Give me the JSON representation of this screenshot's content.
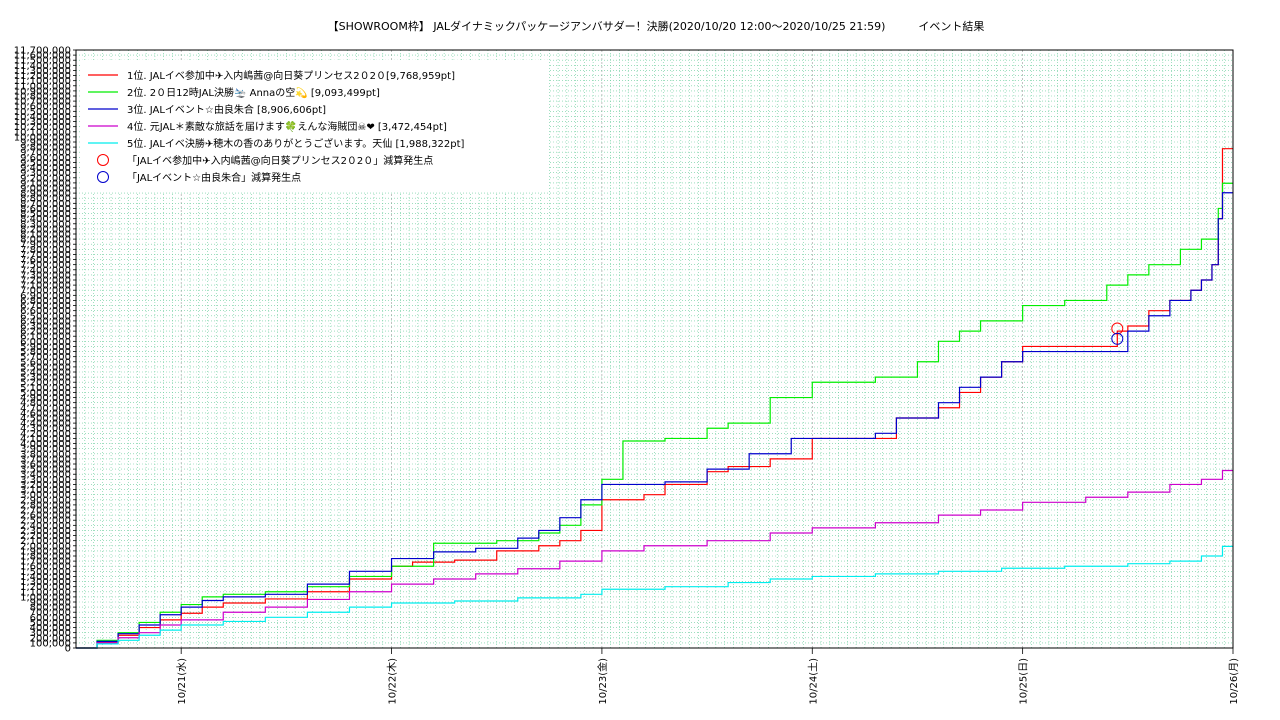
{
  "chart_data": {
    "type": "line",
    "title": "【SHOWROOM枠】 JALダイナミックパッケージアンバサダー！決勝(2020/10/20 12:00〜2020/10/25 21:59)　　　イベント結果",
    "xlabel": "",
    "ylabel": "",
    "grid": true,
    "legend_position": "top-left",
    "x_range_days": [
      -0.5,
      5.0
    ],
    "y_range": [
      0,
      11700000
    ],
    "y_ticks": [
      0,
      100000,
      200000,
      300000,
      400000,
      500000,
      600000,
      700000,
      800000,
      900000,
      1000000,
      1100000,
      1200000,
      1300000,
      1400000,
      1500000,
      1600000,
      1700000,
      1800000,
      1900000,
      2000000,
      2100000,
      2200000,
      2300000,
      2400000,
      2500000,
      2600000,
      2700000,
      2800000,
      2900000,
      3000000,
      3100000,
      3200000,
      3300000,
      3400000,
      3500000,
      3600000,
      3700000,
      3800000,
      3900000,
      4000000,
      4100000,
      4200000,
      4300000,
      4400000,
      4500000,
      4600000,
      4700000,
      4800000,
      4900000,
      5000000,
      5100000,
      5200000,
      5300000,
      5400000,
      5500000,
      5600000,
      5700000,
      5800000,
      5900000,
      6000000,
      6100000,
      6200000,
      6300000,
      6400000,
      6500000,
      6600000,
      6700000,
      6800000,
      6900000,
      7000000,
      7100000,
      7200000,
      7300000,
      7400000,
      7500000,
      7600000,
      7700000,
      7800000,
      7900000,
      8000000,
      8100000,
      8200000,
      8300000,
      8400000,
      8500000,
      8600000,
      8700000,
      8800000,
      8900000,
      9000000,
      9100000,
      9200000,
      9300000,
      9400000,
      9500000,
      9600000,
      9700000,
      9800000,
      9900000,
      10000000,
      10100000,
      10200000,
      10300000,
      10400000,
      10500000,
      10600000,
      10700000,
      10800000,
      10900000,
      11000000,
      11100000,
      11200000,
      11300000,
      11400000,
      11500000,
      11600000,
      11700000
    ],
    "x_tick_labels": [
      "10/21(水)",
      "10/22(木)",
      "10/23(金)",
      "10/24(土)",
      "10/25(日)",
      "10/26(月)"
    ],
    "series": [
      {
        "name": "1位. JALイベ参加中✈入内嶋茜@向日葵プリンセス2０2０[9,768,959pt]",
        "color": "#ff0000",
        "points": [
          [
            -0.5,
            0
          ],
          [
            -0.4,
            120000
          ],
          [
            -0.3,
            250000
          ],
          [
            -0.2,
            400000
          ],
          [
            -0.1,
            550000
          ],
          [
            0.0,
            680000
          ],
          [
            0.1,
            800000
          ],
          [
            0.2,
            880000
          ],
          [
            0.4,
            960000
          ],
          [
            0.6,
            1100000
          ],
          [
            0.8,
            1350000
          ],
          [
            1.0,
            1600000
          ],
          [
            1.1,
            1680000
          ],
          [
            1.3,
            1720000
          ],
          [
            1.5,
            1900000
          ],
          [
            1.7,
            2000000
          ],
          [
            1.8,
            2100000
          ],
          [
            1.9,
            2300000
          ],
          [
            2.0,
            2900000
          ],
          [
            2.2,
            3000000
          ],
          [
            2.3,
            3200000
          ],
          [
            2.5,
            3450000
          ],
          [
            2.6,
            3550000
          ],
          [
            2.8,
            3700000
          ],
          [
            3.0,
            4100000
          ],
          [
            3.3,
            4100000
          ],
          [
            3.4,
            4500000
          ],
          [
            3.6,
            4700000
          ],
          [
            3.7,
            5000000
          ],
          [
            3.8,
            5300000
          ],
          [
            3.9,
            5600000
          ],
          [
            4.0,
            5900000
          ],
          [
            4.3,
            5900000
          ],
          [
            4.45,
            6200000
          ],
          [
            4.5,
            6300000
          ],
          [
            4.6,
            6600000
          ],
          [
            4.7,
            6800000
          ],
          [
            4.8,
            7000000
          ],
          [
            4.85,
            7200000
          ],
          [
            4.9,
            7500000
          ],
          [
            4.93,
            8400000
          ],
          [
            4.95,
            9768959
          ],
          [
            5.0,
            9768959
          ]
        ]
      },
      {
        "name": "2位. 2０日12時JAL決勝🛬 Annaの空💫 [9,093,499pt]",
        "color": "#00ee00",
        "points": [
          [
            -0.5,
            0
          ],
          [
            -0.4,
            150000
          ],
          [
            -0.3,
            300000
          ],
          [
            -0.2,
            500000
          ],
          [
            -0.1,
            700000
          ],
          [
            0.0,
            850000
          ],
          [
            0.1,
            1000000
          ],
          [
            0.2,
            1050000
          ],
          [
            0.4,
            1100000
          ],
          [
            0.6,
            1200000
          ],
          [
            0.8,
            1400000
          ],
          [
            1.0,
            1600000
          ],
          [
            1.2,
            2050000
          ],
          [
            1.5,
            2100000
          ],
          [
            1.7,
            2250000
          ],
          [
            1.8,
            2400000
          ],
          [
            1.9,
            2800000
          ],
          [
            2.0,
            3300000
          ],
          [
            2.1,
            4050000
          ],
          [
            2.3,
            4100000
          ],
          [
            2.5,
            4300000
          ],
          [
            2.6,
            4400000
          ],
          [
            2.8,
            4900000
          ],
          [
            3.0,
            5200000
          ],
          [
            3.3,
            5300000
          ],
          [
            3.5,
            5600000
          ],
          [
            3.6,
            6000000
          ],
          [
            3.7,
            6200000
          ],
          [
            3.8,
            6400000
          ],
          [
            4.0,
            6700000
          ],
          [
            4.2,
            6800000
          ],
          [
            4.4,
            7100000
          ],
          [
            4.5,
            7300000
          ],
          [
            4.6,
            7500000
          ],
          [
            4.75,
            7800000
          ],
          [
            4.85,
            8000000
          ],
          [
            4.93,
            8600000
          ],
          [
            4.95,
            9093499
          ],
          [
            5.0,
            9093499
          ]
        ]
      },
      {
        "name": "3位. JALイベント☆由良朱合 [8,906,606pt]",
        "color": "#0000cc",
        "points": [
          [
            -0.5,
            0
          ],
          [
            -0.4,
            130000
          ],
          [
            -0.3,
            280000
          ],
          [
            -0.2,
            450000
          ],
          [
            -0.1,
            650000
          ],
          [
            0.0,
            800000
          ],
          [
            0.1,
            930000
          ],
          [
            0.2,
            1000000
          ],
          [
            0.4,
            1050000
          ],
          [
            0.6,
            1250000
          ],
          [
            0.8,
            1500000
          ],
          [
            1.0,
            1750000
          ],
          [
            1.2,
            1880000
          ],
          [
            1.4,
            1950000
          ],
          [
            1.6,
            2150000
          ],
          [
            1.7,
            2300000
          ],
          [
            1.8,
            2550000
          ],
          [
            1.9,
            2900000
          ],
          [
            2.0,
            3200000
          ],
          [
            2.3,
            3250000
          ],
          [
            2.5,
            3500000
          ],
          [
            2.7,
            3800000
          ],
          [
            2.9,
            4100000
          ],
          [
            3.0,
            4100000
          ],
          [
            3.3,
            4200000
          ],
          [
            3.4,
            4500000
          ],
          [
            3.6,
            4800000
          ],
          [
            3.7,
            5100000
          ],
          [
            3.8,
            5300000
          ],
          [
            3.9,
            5600000
          ],
          [
            4.0,
            5800000
          ],
          [
            4.4,
            5800000
          ],
          [
            4.5,
            6200000
          ],
          [
            4.6,
            6500000
          ],
          [
            4.7,
            6800000
          ],
          [
            4.8,
            7000000
          ],
          [
            4.85,
            7200000
          ],
          [
            4.9,
            7500000
          ],
          [
            4.93,
            8400000
          ],
          [
            4.95,
            8906606
          ],
          [
            5.0,
            8906606
          ]
        ]
      },
      {
        "name": "4位. 元JAL＊素敵な旅話を届けます🍀えんな海賊団☠❤ [3,472,454pt]",
        "color": "#cc00cc",
        "points": [
          [
            -0.5,
            0
          ],
          [
            -0.4,
            100000
          ],
          [
            -0.3,
            200000
          ],
          [
            -0.2,
            300000
          ],
          [
            -0.1,
            450000
          ],
          [
            0.0,
            550000
          ],
          [
            0.2,
            700000
          ],
          [
            0.4,
            800000
          ],
          [
            0.6,
            950000
          ],
          [
            0.8,
            1100000
          ],
          [
            1.0,
            1250000
          ],
          [
            1.2,
            1350000
          ],
          [
            1.4,
            1450000
          ],
          [
            1.6,
            1550000
          ],
          [
            1.8,
            1700000
          ],
          [
            2.0,
            1900000
          ],
          [
            2.2,
            2000000
          ],
          [
            2.5,
            2100000
          ],
          [
            2.8,
            2250000
          ],
          [
            3.0,
            2350000
          ],
          [
            3.3,
            2450000
          ],
          [
            3.6,
            2600000
          ],
          [
            3.8,
            2700000
          ],
          [
            4.0,
            2850000
          ],
          [
            4.3,
            2950000
          ],
          [
            4.5,
            3050000
          ],
          [
            4.7,
            3200000
          ],
          [
            4.85,
            3300000
          ],
          [
            4.95,
            3472454
          ],
          [
            5.0,
            3472454
          ]
        ]
      },
      {
        "name": "5位. JALイベ決勝✈穂木の香のありがとうございます。天仙 [1,988,322pt]",
        "color": "#00eeee",
        "points": [
          [
            -0.5,
            0
          ],
          [
            -0.4,
            80000
          ],
          [
            -0.3,
            150000
          ],
          [
            -0.2,
            250000
          ],
          [
            -0.1,
            350000
          ],
          [
            0.0,
            450000
          ],
          [
            0.2,
            520000
          ],
          [
            0.4,
            600000
          ],
          [
            0.6,
            700000
          ],
          [
            0.8,
            800000
          ],
          [
            1.0,
            880000
          ],
          [
            1.3,
            920000
          ],
          [
            1.6,
            980000
          ],
          [
            1.9,
            1050000
          ],
          [
            2.0,
            1150000
          ],
          [
            2.3,
            1200000
          ],
          [
            2.6,
            1280000
          ],
          [
            2.8,
            1350000
          ],
          [
            3.0,
            1400000
          ],
          [
            3.3,
            1450000
          ],
          [
            3.6,
            1500000
          ],
          [
            3.9,
            1560000
          ],
          [
            4.2,
            1600000
          ],
          [
            4.5,
            1650000
          ],
          [
            4.7,
            1700000
          ],
          [
            4.85,
            1800000
          ],
          [
            4.95,
            1988322
          ],
          [
            5.0,
            1988322
          ]
        ]
      }
    ],
    "markers": [
      {
        "name": "「JALイベ参加中✈入内嶋茜@向日葵プリンセス2０2０」減算発生点",
        "color": "#ff0000",
        "x": 4.45,
        "y": 6250000
      },
      {
        "name": "「JALイベント☆由良朱合」減算発生点",
        "color": "#0000cc",
        "x": 4.45,
        "y": 6050000
      }
    ]
  }
}
